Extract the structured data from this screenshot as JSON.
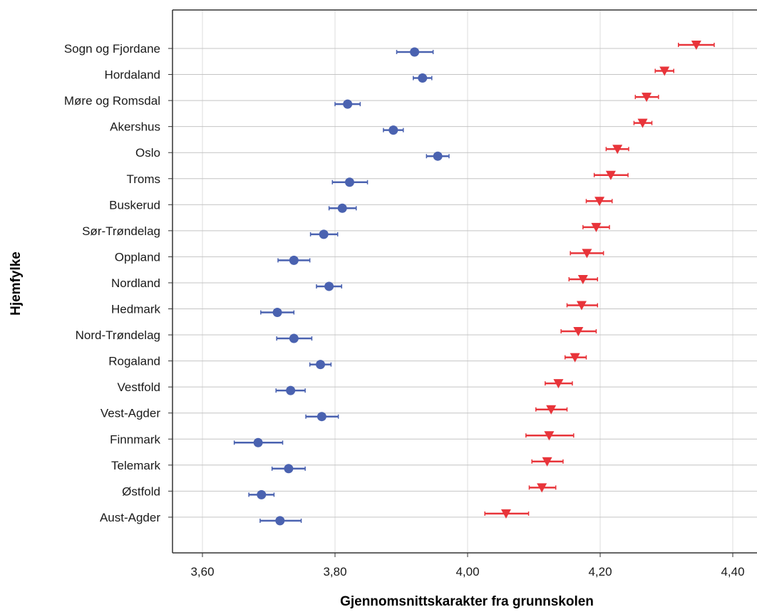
{
  "chart_data": {
    "type": "scatter",
    "xlabel": "Gjennomsnittskarakter fra grunnskolen",
    "ylabel": "Hjemfylke",
    "xlim": [
      3.56,
      4.42
    ],
    "xticks": [
      3.6,
      3.8,
      4.0,
      4.2,
      4.4
    ],
    "xtick_labels": [
      "3,60",
      "3,80",
      "4,00",
      "4,20",
      "4,40"
    ],
    "grid": "vertical and horizontal lines",
    "categories": [
      "Sogn og Fjordane",
      "Hordaland",
      "Møre og Romsdal",
      "Akershus",
      "Oslo",
      "Troms",
      "Buskerud",
      "Sør-Trøndelag",
      "Oppland",
      "Nordland",
      "Hedmark",
      "Nord-Trøndelag",
      "Rogaland",
      "Vestfold",
      "Vest-Agder",
      "Finnmark",
      "Telemark",
      "Østfold",
      "Aust-Agder"
    ],
    "series": [
      {
        "color": "#4a62b0",
        "marker": "circle",
        "values": [
          3.92,
          3.932,
          3.819,
          3.888,
          3.955,
          3.822,
          3.811,
          3.783,
          3.738,
          3.791,
          3.713,
          3.738,
          3.778,
          3.733,
          3.78,
          3.684,
          3.73,
          3.689,
          3.717
        ],
        "ci_low": [
          3.893,
          3.918,
          3.8,
          3.873,
          3.938,
          3.796,
          3.791,
          3.763,
          3.714,
          3.772,
          3.688,
          3.712,
          3.762,
          3.711,
          3.756,
          3.648,
          3.705,
          3.67,
          3.687
        ],
        "ci_high": [
          3.948,
          3.946,
          3.838,
          3.903,
          3.972,
          3.849,
          3.832,
          3.804,
          3.762,
          3.81,
          3.738,
          3.765,
          3.794,
          3.755,
          3.805,
          3.721,
          3.755,
          3.708,
          3.749
        ]
      },
      {
        "color": "#e8343a",
        "marker": "triangle-down",
        "values": [
          4.345,
          4.297,
          4.27,
          4.264,
          4.226,
          4.216,
          4.199,
          4.194,
          4.18,
          4.174,
          4.172,
          4.167,
          4.162,
          4.137,
          4.126,
          4.123,
          4.12,
          4.112,
          4.058
        ],
        "ci_low": [
          4.318,
          4.283,
          4.253,
          4.251,
          4.209,
          4.191,
          4.179,
          4.174,
          4.155,
          4.153,
          4.15,
          4.141,
          4.147,
          4.117,
          4.103,
          4.088,
          4.097,
          4.093,
          4.026
        ],
        "ci_high": [
          4.372,
          4.311,
          4.288,
          4.278,
          4.243,
          4.242,
          4.218,
          4.214,
          4.205,
          4.196,
          4.196,
          4.194,
          4.179,
          4.158,
          4.15,
          4.16,
          4.144,
          4.133,
          4.092
        ]
      }
    ]
  }
}
